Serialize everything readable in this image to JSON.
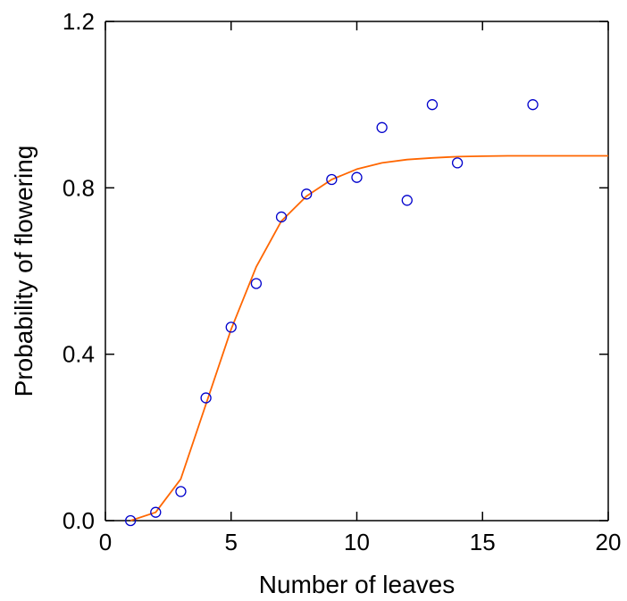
{
  "chart_data": {
    "type": "scatter",
    "title": "",
    "xlabel": "Number of leaves",
    "ylabel": "Probability of flowering",
    "xlim": [
      0,
      20
    ],
    "ylim": [
      0,
      1.2
    ],
    "x_ticks": [
      0,
      5,
      10,
      15,
      20
    ],
    "x_tick_labels": [
      "0",
      "5",
      "10",
      "15",
      "20"
    ],
    "y_ticks": [
      0,
      0.4,
      0.8,
      1.2
    ],
    "y_tick_labels": [
      "0.0",
      "0.4",
      "0.8",
      "1.2"
    ],
    "grid": false,
    "series": [
      {
        "kind": "points",
        "marker": "open-circle",
        "color": "#0000cc",
        "x": [
          1,
          2,
          3,
          4,
          5,
          6,
          7,
          8,
          9,
          10,
          11,
          12,
          13,
          14,
          17
        ],
        "y": [
          0.0,
          0.02,
          0.07,
          0.295,
          0.465,
          0.57,
          0.73,
          0.785,
          0.82,
          0.825,
          0.945,
          0.77,
          1.0,
          0.86,
          1.0
        ]
      },
      {
        "kind": "fitted-curve",
        "color": "#ff6600",
        "x": [
          1,
          2,
          3,
          4,
          5,
          6,
          7,
          8,
          9,
          10,
          11,
          12,
          13,
          14,
          15,
          16,
          17,
          18,
          19,
          20
        ],
        "y": [
          0.0,
          0.02,
          0.1,
          0.28,
          0.46,
          0.61,
          0.72,
          0.78,
          0.82,
          0.845,
          0.86,
          0.868,
          0.872,
          0.875,
          0.876,
          0.877,
          0.877,
          0.877,
          0.877,
          0.877
        ]
      }
    ]
  }
}
